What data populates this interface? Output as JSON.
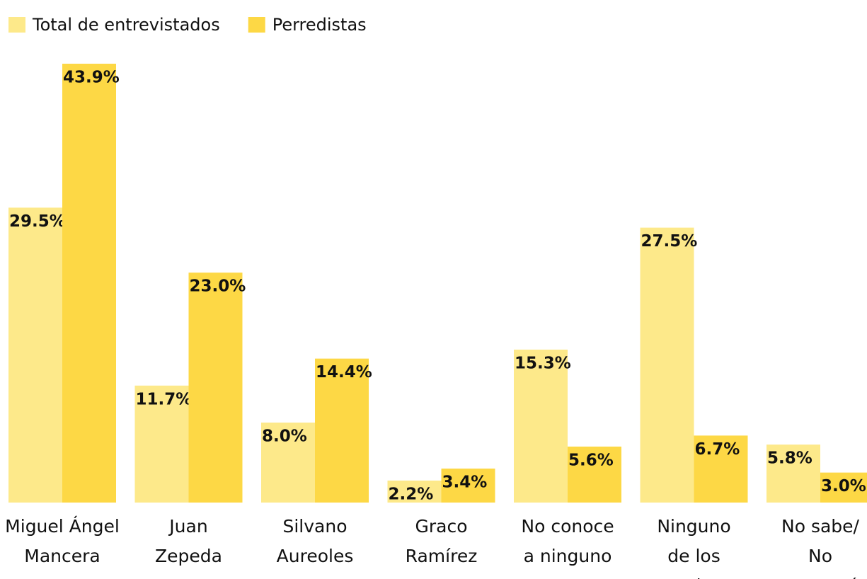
{
  "chart_data": {
    "type": "bar",
    "categories": [
      [
        "Miguel Ángel",
        "Mancera"
      ],
      [
        "Juan",
        "Zepeda"
      ],
      [
        "Silvano",
        "Aureoles"
      ],
      [
        "Graco",
        "Ramírez"
      ],
      [
        "No conoce",
        "a ninguno"
      ],
      [
        "Ninguno",
        "de los",
        "anteriores"
      ],
      [
        "No sabe/",
        "No",
        "contestó"
      ]
    ],
    "series": [
      {
        "name": "Total de entrevistados",
        "color": "#fde98a",
        "values": [
          29.5,
          11.7,
          8.0,
          2.2,
          15.3,
          27.5,
          5.8
        ],
        "value_labels": [
          "29.5%",
          "11.7%",
          "8.0%",
          "2.2%",
          "15.3%",
          "27.5%",
          "5.8%"
        ]
      },
      {
        "name": "Perredistas",
        "color": "#fdd845",
        "values": [
          43.9,
          23.0,
          14.4,
          3.4,
          5.6,
          6.7,
          3.0
        ],
        "value_labels": [
          "43.9%",
          "23.0%",
          "14.4%",
          "3.4%",
          "5.6%",
          "6.7%",
          "3.0%"
        ]
      }
    ],
    "legend": "top-left"
  }
}
